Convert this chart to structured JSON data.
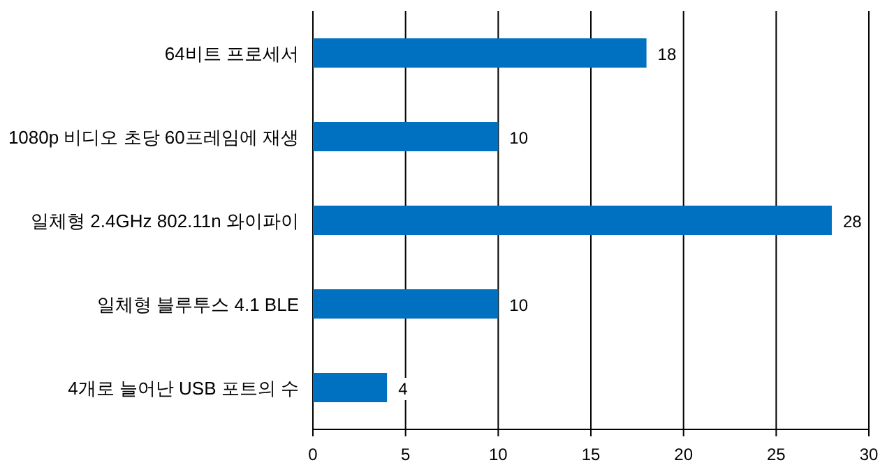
{
  "chart_data": {
    "type": "bar",
    "orientation": "horizontal",
    "categories": [
      "64비트 프로세서",
      "1080p 비디오 초당 60프레임에 재생",
      "일체형 2.4GHz 802.11n 와이파이",
      "일체형 블루투스 4.1 BLE",
      "4개로 늘어난 USB 포트의 수"
    ],
    "values": [
      18,
      10,
      28,
      10,
      4
    ],
    "color": "#0070c0",
    "xlim": [
      0,
      30
    ],
    "xticks": [
      0,
      5,
      10,
      15,
      20,
      25,
      30
    ],
    "grid": "x",
    "data_labels": true
  }
}
